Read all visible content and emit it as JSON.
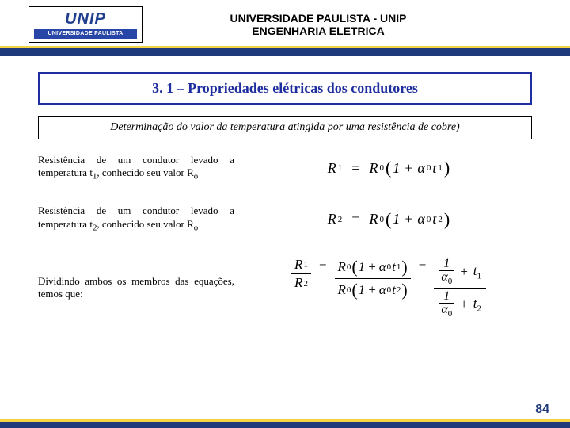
{
  "header": {
    "logo_big": "UNIP",
    "logo_bar": "UNIVERSIDADE PAULISTA",
    "line1": "UNIVERSIDADE PAULISTA - UNIP",
    "line2": "ENGENHARIA  ELETRICA"
  },
  "section_title": "3. 1 – Propriedades elétricas dos condutores",
  "subtitle": "Determinação do valor da temperatura atingida por uma resistência de cobre)",
  "rows": [
    {
      "desc_html": "Resistência de um condutor levado a temperatura t<sub>1</sub>, conhecido seu valor R<sub>o</sub>",
      "equation": {
        "left_sub": "1",
        "right_t_sub": "1"
      }
    },
    {
      "desc_html": "Resistência de um condutor levado a temperatura t<sub>2</sub>, conhecido seu valor R<sub>o</sub>",
      "equation": {
        "left_sub": "2",
        "right_t_sub": "2"
      }
    },
    {
      "desc_html": "Dividindo ambos os membros das equações, temos que:"
    }
  ],
  "symbols": {
    "R": "R",
    "zero": "0",
    "one": "1",
    "two": "2",
    "t": "t",
    "plus": "+",
    "eq": "="
  },
  "colors": {
    "navy": "#1e3a7a",
    "yellow": "#f4d341",
    "title_blue": "#1e2e9e"
  },
  "page_number": "84"
}
